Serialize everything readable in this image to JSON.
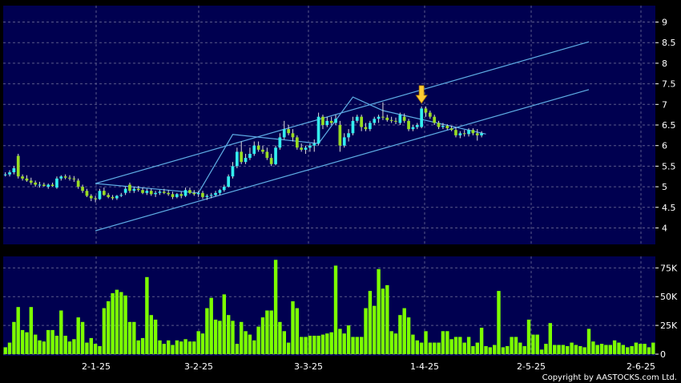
{
  "chart_data": [
    {
      "type": "candlestick",
      "title": "",
      "ylim": [
        3.6,
        9.4
      ],
      "y_ticks": [
        4,
        4.5,
        5,
        5.5,
        6,
        6.5,
        7,
        7.5,
        8,
        8.5,
        9
      ],
      "grid": true,
      "x_ticks": [
        "2-1-25",
        "3-2-25",
        "3-3-25",
        "1-4-25",
        "2-5-25",
        "2-6-25"
      ],
      "candles": [
        [
          5.3,
          5.35,
          5.25,
          5.3
        ],
        [
          5.3,
          5.4,
          5.25,
          5.35
        ],
        [
          5.35,
          5.5,
          5.3,
          5.45
        ],
        [
          5.75,
          5.8,
          5.2,
          5.25
        ],
        [
          5.25,
          5.3,
          5.15,
          5.2
        ],
        [
          5.2,
          5.28,
          5.12,
          5.15
        ],
        [
          5.15,
          5.22,
          5.05,
          5.1
        ],
        [
          5.1,
          5.15,
          5.0,
          5.05
        ],
        [
          5.05,
          5.12,
          4.98,
          5.05
        ],
        [
          5.05,
          5.1,
          5.0,
          5.02
        ],
        [
          5.0,
          5.08,
          4.95,
          5.05
        ],
        [
          5.05,
          5.1,
          5.0,
          5.02
        ],
        [
          4.98,
          5.25,
          4.95,
          5.2
        ],
        [
          5.2,
          5.28,
          5.15,
          5.25
        ],
        [
          5.25,
          5.3,
          5.18,
          5.22
        ],
        [
          5.22,
          5.28,
          5.15,
          5.2
        ],
        [
          5.2,
          5.26,
          5.12,
          5.18
        ],
        [
          5.15,
          5.2,
          4.95,
          5.0
        ],
        [
          5.0,
          5.05,
          4.85,
          4.9
        ],
        [
          4.9,
          4.95,
          4.75,
          4.78
        ],
        [
          4.78,
          4.82,
          4.65,
          4.72
        ],
        [
          4.72,
          4.78,
          4.62,
          4.7
        ],
        [
          4.7,
          4.95,
          4.68,
          4.9
        ],
        [
          4.9,
          4.98,
          4.78,
          4.8
        ],
        [
          4.8,
          4.85,
          4.72,
          4.75
        ],
        [
          4.75,
          4.8,
          4.68,
          4.72
        ],
        [
          4.72,
          4.8,
          4.68,
          4.78
        ],
        [
          4.78,
          4.85,
          4.75,
          4.8
        ],
        [
          4.85,
          5.0,
          4.8,
          4.95
        ],
        [
          5.05,
          5.1,
          4.85,
          4.9
        ],
        [
          4.9,
          5.0,
          4.85,
          4.95
        ],
        [
          4.95,
          5.02,
          4.88,
          4.92
        ],
        [
          4.92,
          4.98,
          4.82,
          4.85
        ],
        [
          4.85,
          4.95,
          4.8,
          4.9
        ],
        [
          4.9,
          4.95,
          4.78,
          4.82
        ],
        [
          4.82,
          4.9,
          4.75,
          4.85
        ],
        [
          4.85,
          4.92,
          4.8,
          4.88
        ],
        [
          4.88,
          4.95,
          4.82,
          4.85
        ],
        [
          4.85,
          4.92,
          4.78,
          4.82
        ],
        [
          4.82,
          4.88,
          4.7,
          4.75
        ],
        [
          4.75,
          4.85,
          4.72,
          4.82
        ],
        [
          4.82,
          4.88,
          4.72,
          4.78
        ],
        [
          4.78,
          4.98,
          4.75,
          4.92
        ],
        [
          4.92,
          4.98,
          4.82,
          4.85
        ],
        [
          4.85,
          4.92,
          4.78,
          4.82
        ],
        [
          4.82,
          4.9,
          4.75,
          4.85
        ],
        [
          4.85,
          4.9,
          4.7,
          4.75
        ],
        [
          4.75,
          4.82,
          4.68,
          4.78
        ],
        [
          4.78,
          4.85,
          4.72,
          4.8
        ],
        [
          4.8,
          4.9,
          4.76,
          4.85
        ],
        [
          4.85,
          4.95,
          4.8,
          4.92
        ],
        [
          4.92,
          5.05,
          4.88,
          5.0
        ],
        [
          5.0,
          5.3,
          4.98,
          5.25
        ],
        [
          5.25,
          5.6,
          5.2,
          5.5
        ],
        [
          5.5,
          5.95,
          5.45,
          5.85
        ],
        [
          5.85,
          6.1,
          5.55,
          5.6
        ],
        [
          5.6,
          5.8,
          5.55,
          5.7
        ],
        [
          5.7,
          5.95,
          5.65,
          5.8
        ],
        [
          5.8,
          6.1,
          5.75,
          6.0
        ],
        [
          6.0,
          6.1,
          5.85,
          5.9
        ],
        [
          5.9,
          6.0,
          5.8,
          5.85
        ],
        [
          5.85,
          5.95,
          5.65,
          5.7
        ],
        [
          5.7,
          5.8,
          5.5,
          5.55
        ],
        [
          5.55,
          6.0,
          5.52,
          5.95
        ],
        [
          5.95,
          6.3,
          5.9,
          6.2
        ],
        [
          6.2,
          6.6,
          6.15,
          6.4
        ],
        [
          6.4,
          6.5,
          6.25,
          6.3
        ],
        [
          6.3,
          6.4,
          6.1,
          6.2
        ],
        [
          6.2,
          6.25,
          5.9,
          5.95
        ],
        [
          5.95,
          6.05,
          5.85,
          5.9
        ],
        [
          5.9,
          6.0,
          5.8,
          5.95
        ],
        [
          5.95,
          6.05,
          5.85,
          6.0
        ],
        [
          6.0,
          6.15,
          5.85,
          6.05
        ],
        [
          6.05,
          6.8,
          6.0,
          6.7
        ],
        [
          6.7,
          6.75,
          6.4,
          6.5
        ],
        [
          6.5,
          6.7,
          6.45,
          6.6
        ],
        [
          6.6,
          6.7,
          6.5,
          6.55
        ],
        [
          6.55,
          6.75,
          6.5,
          6.65
        ],
        [
          6.5,
          6.6,
          5.85,
          6.0
        ],
        [
          6.0,
          6.3,
          5.95,
          6.2
        ],
        [
          6.2,
          6.4,
          6.1,
          6.3
        ],
        [
          6.3,
          6.7,
          6.25,
          6.6
        ],
        [
          6.6,
          6.75,
          6.55,
          6.7
        ],
        [
          6.7,
          6.75,
          6.35,
          6.45
        ],
        [
          6.45,
          6.55,
          6.35,
          6.4
        ],
        [
          6.4,
          6.6,
          6.35,
          6.55
        ],
        [
          6.55,
          6.7,
          6.5,
          6.65
        ],
        [
          6.65,
          6.75,
          6.55,
          6.7
        ],
        [
          6.7,
          7.05,
          6.62,
          6.68
        ],
        [
          6.68,
          6.75,
          6.58,
          6.62
        ],
        [
          6.62,
          6.7,
          6.55,
          6.6
        ],
        [
          6.6,
          6.68,
          6.52,
          6.58
        ],
        [
          6.55,
          6.8,
          6.5,
          6.75
        ],
        [
          6.7,
          6.78,
          6.55,
          6.6
        ],
        [
          6.6,
          6.65,
          6.35,
          6.4
        ],
        [
          6.4,
          6.5,
          6.35,
          6.45
        ],
        [
          6.45,
          6.55,
          6.4,
          6.5
        ],
        [
          6.45,
          6.95,
          6.42,
          6.9
        ],
        [
          6.9,
          6.95,
          6.7,
          6.8
        ],
        [
          6.8,
          6.85,
          6.65,
          6.7
        ],
        [
          6.7,
          6.75,
          6.5,
          6.55
        ],
        [
          6.55,
          6.6,
          6.4,
          6.45
        ],
        [
          6.45,
          6.55,
          6.4,
          6.48
        ],
        [
          6.48,
          6.52,
          6.38,
          6.42
        ],
        [
          6.42,
          6.48,
          6.35,
          6.38
        ],
        [
          6.38,
          6.45,
          6.2,
          6.25
        ],
        [
          6.25,
          6.35,
          6.18,
          6.3
        ],
        [
          6.3,
          6.38,
          6.22,
          6.28
        ],
        [
          6.28,
          6.42,
          6.22,
          6.38
        ],
        [
          6.38,
          6.42,
          6.25,
          6.3
        ],
        [
          6.3,
          6.4,
          6.12,
          6.25
        ],
        [
          6.25,
          6.35,
          6.2,
          6.3
        ]
      ],
      "up_color": "#33eeee",
      "down_color": "#99dd22",
      "channels": [
        {
          "name": "upper channel",
          "color": "#5faee6",
          "points": [
            [
              21,
              5.08
            ],
            [
              136,
              8.52
            ]
          ]
        },
        {
          "name": "lower channel",
          "color": "#5faee6",
          "points": [
            [
              21,
              3.93
            ],
            [
              136,
              7.36
            ]
          ]
        },
        {
          "name": "zigzag",
          "color": "#5faee6",
          "points": [
            [
              21,
              5.08
            ],
            [
              45,
              4.85
            ],
            [
              53,
              6.27
            ],
            [
              73,
              6.05
            ],
            [
              81,
              7.18
            ],
            [
              88,
              6.85
            ],
            [
              112,
              6.28
            ]
          ]
        }
      ],
      "marker": {
        "index": 97,
        "color": "#ffcc33",
        "icon": "down-arrow-icon"
      }
    },
    {
      "type": "bar",
      "title": "",
      "ylim": [
        0,
        85000
      ],
      "y_ticks": [
        "0",
        "25K",
        "50K",
        "75K"
      ],
      "y_tick_values": [
        0,
        25000,
        50000,
        75000
      ],
      "bar_color": "#7cff00",
      "values": [
        6,
        10,
        28,
        41,
        21,
        19,
        41,
        17,
        12,
        11,
        21,
        21,
        16,
        38,
        16,
        11,
        13,
        32,
        28,
        10,
        14,
        9,
        7,
        40,
        46,
        53,
        56,
        54,
        51,
        28,
        28,
        12,
        14,
        67,
        34,
        30,
        12,
        9,
        12,
        8,
        12,
        11,
        13,
        11,
        11,
        20,
        18,
        40,
        49,
        30,
        29,
        52,
        34,
        29,
        9,
        28,
        20,
        17,
        12,
        24,
        32,
        38,
        38,
        82,
        28,
        20,
        10,
        46,
        40,
        15,
        15,
        16,
        16,
        16,
        17,
        18,
        19,
        77,
        22,
        18,
        25,
        15,
        15,
        15,
        40,
        55,
        42,
        74,
        57,
        60,
        20,
        18,
        34,
        40,
        32,
        17,
        12,
        10,
        20,
        10,
        10,
        10,
        20,
        20,
        13,
        15,
        15,
        10,
        15,
        7,
        10,
        23,
        7,
        6,
        8,
        55,
        6,
        7,
        15,
        15,
        10,
        7,
        30,
        17,
        17,
        4,
        9,
        27,
        8,
        8,
        8,
        7,
        10,
        8,
        7,
        6,
        22,
        11,
        8,
        9,
        8,
        8,
        12,
        10,
        8,
        6,
        7,
        10,
        9,
        9,
        6,
        10
      ],
      "labels": {
        "copyright": "Copyright by AASTOCKS.com Ltd."
      }
    }
  ]
}
